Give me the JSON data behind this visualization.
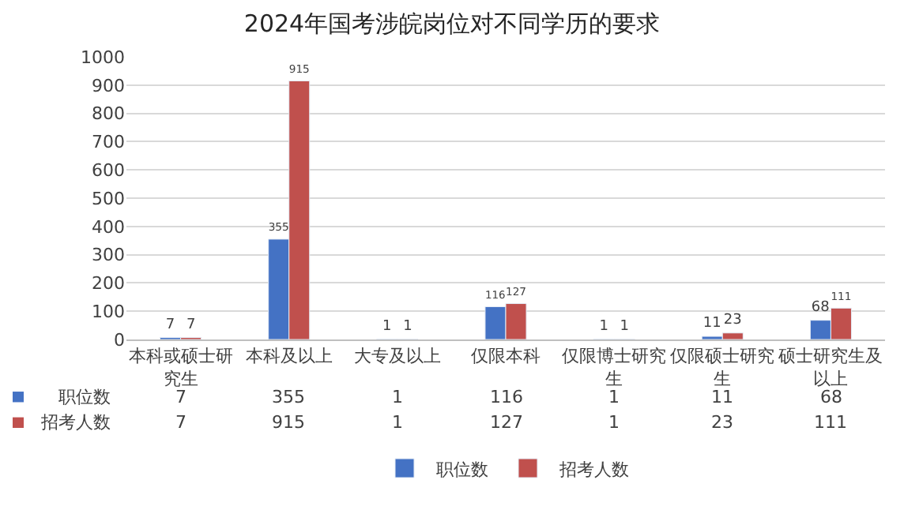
{
  "chart_data": {
    "type": "bar",
    "title": "2024年国考涉皖岗位对不同学历的要求",
    "categories": [
      "本科或硕士研究生",
      "本科及以上",
      "大专及以上",
      "仅限本科",
      "仅限博士研究生",
      "仅限硕士研究生",
      "硕士研究生及以上"
    ],
    "series": [
      {
        "name": "职位数",
        "color": "#4472c4",
        "values": [
          7,
          355,
          1,
          116,
          1,
          11,
          68
        ],
        "value_labels": [
          "7",
          "355",
          "1",
          "116",
          "1",
          "11",
          "68"
        ]
      },
      {
        "name": "招考人数",
        "color": "#c0504d",
        "values": [
          7,
          915,
          1,
          127,
          1,
          23,
          111
        ],
        "value_labels": [
          "7",
          "915",
          "1",
          "127",
          "1",
          "23",
          "111"
        ]
      }
    ],
    "ylim": [
      0,
      1000
    ],
    "yticks": [
      0,
      100,
      200,
      300,
      400,
      500,
      600,
      700,
      800,
      900,
      1000
    ],
    "grid": "y",
    "legend": "bottom",
    "data_labels": true
  }
}
